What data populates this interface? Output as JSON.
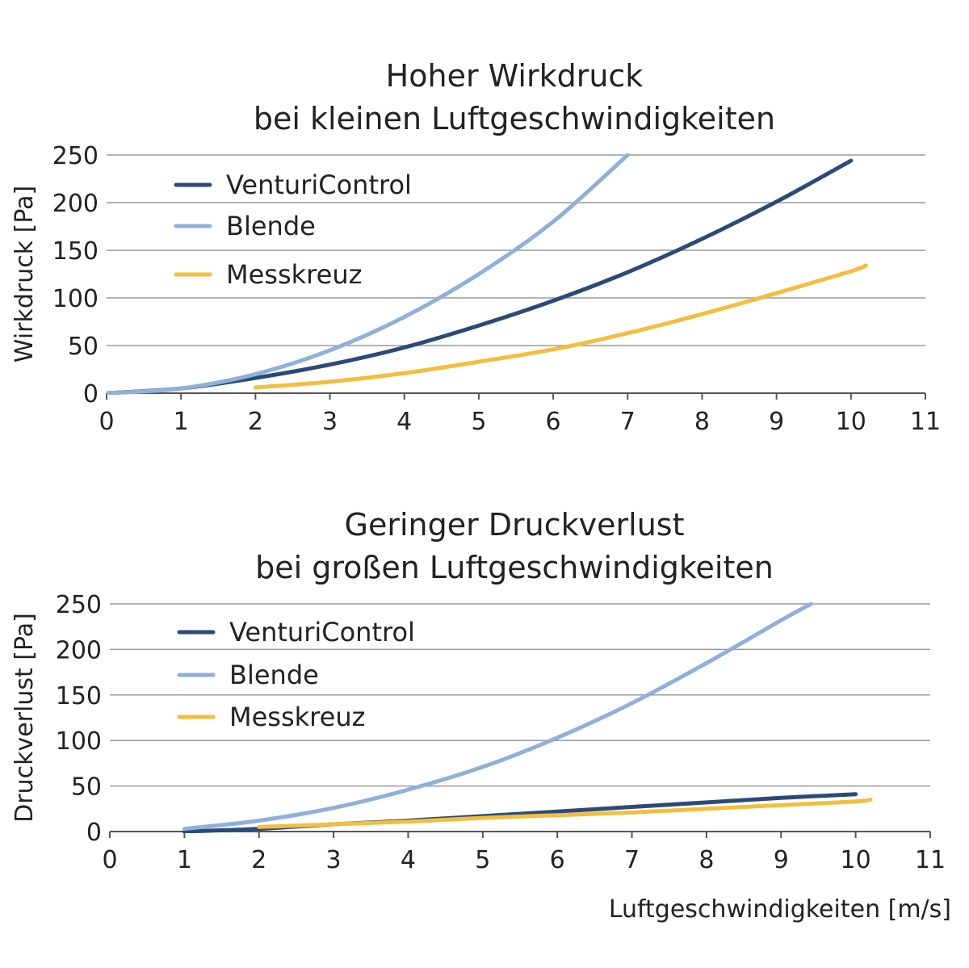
{
  "colors": {
    "VenturiControl": "#2b4a78",
    "Blende": "#8fb0da",
    "Messkreuz": "#f4bd3c",
    "grid": "#9a9a9a",
    "axis": "#555555"
  },
  "x_axis_label": "Luftgeschwindigkeiten [m/s]",
  "chart_data": [
    {
      "type": "line",
      "title_line1": "Hoher Wirkdruck",
      "title_line2": "bei kleinen Luftgeschwindigkeiten",
      "ylabel": "Wirkdruck [Pa]",
      "xlim": [
        0,
        11
      ],
      "ylim": [
        0,
        250
      ],
      "xticks": [
        "0",
        "1",
        "2",
        "3",
        "4",
        "5",
        "6",
        "7",
        "8",
        "9",
        "10",
        "11"
      ],
      "yticks": [
        "0",
        "50",
        "100",
        "150",
        "200",
        "250"
      ],
      "grid": true,
      "legend_position": "top-left",
      "series": [
        {
          "name": "VenturiControl",
          "x": [
            0,
            1,
            2,
            3,
            4,
            5,
            6,
            7,
            8,
            9,
            10
          ],
          "y": [
            0,
            5,
            16,
            30,
            48,
            71,
            97,
            127,
            162,
            201,
            244
          ]
        },
        {
          "name": "Blende",
          "x": [
            0,
            1,
            2,
            3,
            4,
            5,
            6,
            7
          ],
          "y": [
            0,
            5,
            20,
            45,
            80,
            125,
            180,
            250
          ]
        },
        {
          "name": "Messkreuz",
          "x": [
            2,
            3,
            4,
            5,
            6,
            7,
            8,
            9,
            10,
            10.2
          ],
          "y": [
            6,
            12,
            21,
            33,
            46,
            63,
            83,
            105,
            128,
            134
          ]
        }
      ]
    },
    {
      "type": "line",
      "title_line1": "Geringer Druckverlust",
      "title_line2": "bei großen Luftgeschwindigkeiten",
      "ylabel": "Druckverlust [Pa]",
      "xlim": [
        0,
        11
      ],
      "ylim": [
        0,
        250
      ],
      "xticks": [
        "0",
        "1",
        "2",
        "3",
        "4",
        "5",
        "6",
        "7",
        "8",
        "9",
        "10",
        "11"
      ],
      "yticks": [
        "0",
        "50",
        "100",
        "150",
        "200",
        "250"
      ],
      "grid": true,
      "legend_position": "top-left",
      "series": [
        {
          "name": "VenturiControl",
          "x": [
            1,
            2,
            3,
            4,
            5,
            6,
            7,
            8,
            9,
            10
          ],
          "y": [
            0,
            3,
            8,
            12,
            17,
            22,
            27,
            32,
            37,
            41
          ]
        },
        {
          "name": "Blende",
          "x": [
            1,
            2,
            3,
            4,
            5,
            6,
            7,
            8,
            9,
            9.4
          ],
          "y": [
            3,
            12,
            26,
            46,
            71,
            103,
            141,
            185,
            232,
            250
          ]
        },
        {
          "name": "Messkreuz",
          "x": [
            2,
            3,
            4,
            5,
            6,
            7,
            8,
            9,
            10,
            10.2
          ],
          "y": [
            5,
            8,
            11,
            15,
            18,
            21,
            25,
            29,
            33,
            35
          ]
        }
      ]
    }
  ]
}
